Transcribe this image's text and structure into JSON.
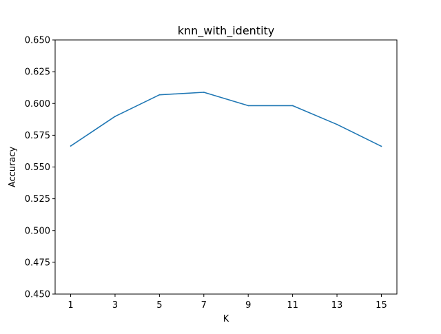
{
  "chart_data": {
    "type": "line",
    "title": "knn_with_identity",
    "xlabel": "K",
    "ylabel": "Accuracy",
    "x": [
      1,
      3,
      5,
      7,
      9,
      11,
      13,
      15
    ],
    "xticks": [
      "1",
      "3",
      "5",
      "7",
      "9",
      "11",
      "13",
      "15"
    ],
    "xlim": [
      0.3,
      15.7
    ],
    "ylim": [
      0.45,
      0.65
    ],
    "yticks": [
      "0.450",
      "0.475",
      "0.500",
      "0.525",
      "0.550",
      "0.575",
      "0.600",
      "0.625",
      "0.650"
    ],
    "series": [
      {
        "values": [
          0.5665,
          0.5898,
          0.6068,
          0.6088,
          0.5983,
          0.5983,
          0.5835,
          0.5663
        ],
        "color": "#1f77b4"
      }
    ],
    "grid": false,
    "legend": "none"
  }
}
